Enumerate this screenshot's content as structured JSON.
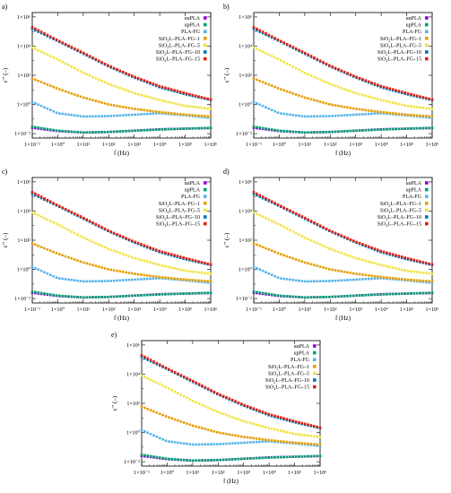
{
  "legend_order": [
    "uuPLA",
    "upPLA",
    "PLA-FG",
    "SiO2L-PLA-FG-1",
    "SiO2L-PLA-FG-5",
    "SiO2L-PLA-FG-10",
    "SiO2L-PLA-FG-15"
  ],
  "series_styles": {
    "uuPLA": {
      "color": "#9400d3",
      "legend": [
        "uuPLA"
      ]
    },
    "upPLA": {
      "color": "#009e73",
      "legend": [
        "upPLA"
      ]
    },
    "PLA-FG": {
      "color": "#56b4e9",
      "legend": [
        "PLA-FG"
      ]
    },
    "SiO2L-PLA-FG-1": {
      "color": "#e69f00",
      "legend": [
        "SiO",
        "2",
        "L–PLA–FG–1"
      ]
    },
    "SiO2L-PLA-FG-5": {
      "color": "#f0e442",
      "legend": [
        "SiO",
        "2",
        "L–PLA–FG–5"
      ]
    },
    "SiO2L-PLA-FG-10": {
      "color": "#0072b2",
      "legend": [
        "SiO",
        "2",
        "L–PLA–FG–10"
      ]
    },
    "SiO2L-PLA-FG-15": {
      "color": "#e51e10",
      "legend": [
        "SiO",
        "2",
        "L–PLA–FG–15"
      ]
    }
  },
  "chart_data": [
    {
      "type": "scatter",
      "panel_label": "a)",
      "xlabel": "f (Hz)",
      "ylabel": "ε’’ (–)",
      "xscale": "log",
      "yscale": "log",
      "xlim": [
        0.1,
        1000000
      ],
      "ylim": [
        0.005,
        2000000
      ],
      "x_ticks": [
        "1×10⁻¹",
        "1×10⁰",
        "1×10¹",
        "1×10²",
        "1×10³",
        "1×10⁴",
        "1×10⁵",
        "1×10⁶"
      ],
      "y_ticks": [
        "1×10⁻²",
        "1×10⁰",
        "1×10²",
        "1×10⁴",
        "1×10⁶"
      ],
      "grid": false,
      "legend": "top-right",
      "series": [
        {
          "name": "uuPLA",
          "x": [
            0.1,
            1,
            10,
            100,
            1000,
            10000,
            100000,
            1000000
          ],
          "y": [
            0.025,
            0.015,
            0.012,
            0.013,
            0.016,
            0.02,
            0.022,
            0.024
          ]
        },
        {
          "name": "upPLA",
          "x": [
            0.1,
            1,
            10,
            100,
            1000,
            10000,
            100000,
            1000000
          ],
          "y": [
            0.03,
            0.016,
            0.012,
            0.013,
            0.016,
            0.019,
            0.022,
            0.025
          ]
        },
        {
          "name": "PLA-FG",
          "x": [
            0.1,
            1,
            10,
            100,
            1000,
            10000,
            100000,
            1000000
          ],
          "y": [
            1.5,
            0.25,
            0.15,
            0.16,
            0.2,
            0.25,
            0.18,
            0.12
          ]
        },
        {
          "name": "SiO2L-PLA-FG-1",
          "x": [
            0.1,
            1,
            10,
            100,
            1000,
            10000,
            100000,
            1000000
          ],
          "y": [
            60,
            12,
            3,
            1,
            0.5,
            0.3,
            0.2,
            0.15
          ]
        },
        {
          "name": "SiO2L-PLA-FG-5",
          "x": [
            0.1,
            1,
            10,
            100,
            1000,
            10000,
            100000,
            1000000
          ],
          "y": [
            8000,
            1200,
            150,
            25,
            6,
            2,
            0.8,
            0.5
          ]
        },
        {
          "name": "SiO2L-PLA-FG-10",
          "x": [
            0.1,
            1,
            10,
            100,
            1000,
            10000,
            100000,
            1000000
          ],
          "y": [
            150000,
            22000,
            3000,
            400,
            70,
            15,
            5,
            2
          ]
        },
        {
          "name": "SiO2L-PLA-FG-15",
          "x": [
            0.1,
            1,
            10,
            100,
            1000,
            10000,
            100000,
            1000000
          ],
          "y": [
            200000,
            25000,
            3500,
            450,
            80,
            18,
            6,
            2.2
          ]
        }
      ]
    },
    {
      "type": "scatter",
      "panel_label": "b)",
      "xlabel": "f (Hz)",
      "ylabel": "ε’’ (–)",
      "xscale": "log",
      "yscale": "log",
      "xlim": [
        0.1,
        1000000
      ],
      "ylim": [
        0.005,
        2000000
      ],
      "x_ticks": [
        "1×10⁻¹",
        "1×10⁰",
        "1×10¹",
        "1×10²",
        "1×10³",
        "1×10⁴",
        "1×10⁵",
        "1×10⁶"
      ],
      "y_ticks": [
        "1×10⁻²",
        "1×10⁰",
        "1×10²",
        "1×10⁴",
        "1×10⁶"
      ],
      "grid": false,
      "legend": "top-right",
      "series": [
        {
          "name": "uuPLA",
          "x": [
            0.1,
            1,
            10,
            100,
            1000,
            10000,
            100000,
            1000000
          ],
          "y": [
            0.025,
            0.015,
            0.012,
            0.013,
            0.016,
            0.02,
            0.022,
            0.024
          ]
        },
        {
          "name": "upPLA",
          "x": [
            0.1,
            1,
            10,
            100,
            1000,
            10000,
            100000,
            1000000
          ],
          "y": [
            0.03,
            0.016,
            0.012,
            0.013,
            0.016,
            0.019,
            0.022,
            0.025
          ]
        },
        {
          "name": "PLA-FG",
          "x": [
            0.1,
            1,
            10,
            100,
            1000,
            10000,
            100000,
            1000000
          ],
          "y": [
            1.5,
            0.25,
            0.15,
            0.16,
            0.2,
            0.25,
            0.18,
            0.12
          ]
        },
        {
          "name": "SiO2L-PLA-FG-1",
          "x": [
            0.1,
            1,
            10,
            100,
            1000,
            10000,
            100000,
            1000000
          ],
          "y": [
            60,
            12,
            3,
            1,
            0.5,
            0.3,
            0.2,
            0.15
          ]
        },
        {
          "name": "SiO2L-PLA-FG-5",
          "x": [
            0.1,
            1,
            10,
            100,
            1000,
            10000,
            100000,
            1000000
          ],
          "y": [
            8000,
            1200,
            150,
            25,
            6,
            2,
            0.8,
            0.5
          ]
        },
        {
          "name": "SiO2L-PLA-FG-10",
          "x": [
            0.1,
            1,
            10,
            100,
            1000,
            10000,
            100000,
            1000000
          ],
          "y": [
            150000,
            22000,
            3000,
            400,
            70,
            15,
            5,
            2
          ]
        },
        {
          "name": "SiO2L-PLA-FG-15",
          "x": [
            0.1,
            1,
            10,
            100,
            1000,
            10000,
            100000,
            1000000
          ],
          "y": [
            200000,
            25000,
            3500,
            450,
            80,
            18,
            6,
            2.2
          ]
        }
      ]
    },
    {
      "type": "scatter",
      "panel_label": "c)",
      "xlabel": "f (Hz)",
      "ylabel": "ε’’ (–)",
      "xscale": "log",
      "yscale": "log",
      "xlim": [
        0.1,
        1000000
      ],
      "ylim": [
        0.005,
        2000000
      ],
      "x_ticks": [
        "1×10⁻¹",
        "1×10⁰",
        "1×10¹",
        "1×10²",
        "1×10³",
        "1×10⁴",
        "1×10⁵",
        "1×10⁶"
      ],
      "y_ticks": [
        "1×10⁻²",
        "1×10⁰",
        "1×10²",
        "1×10⁴",
        "1×10⁶"
      ],
      "grid": false,
      "legend": "top-right",
      "series": [
        {
          "name": "uuPLA",
          "x": [
            0.1,
            1,
            10,
            100,
            1000,
            10000,
            100000,
            1000000
          ],
          "y": [
            0.025,
            0.015,
            0.012,
            0.013,
            0.016,
            0.02,
            0.022,
            0.024
          ]
        },
        {
          "name": "upPLA",
          "x": [
            0.1,
            1,
            10,
            100,
            1000,
            10000,
            100000,
            1000000
          ],
          "y": [
            0.03,
            0.016,
            0.012,
            0.013,
            0.016,
            0.019,
            0.022,
            0.025
          ]
        },
        {
          "name": "PLA-FG",
          "x": [
            0.1,
            1,
            10,
            100,
            1000,
            10000,
            100000,
            1000000
          ],
          "y": [
            1.5,
            0.25,
            0.15,
            0.16,
            0.2,
            0.25,
            0.18,
            0.12
          ]
        },
        {
          "name": "SiO2L-PLA-FG-1",
          "x": [
            0.1,
            1,
            10,
            100,
            1000,
            10000,
            100000,
            1000000
          ],
          "y": [
            60,
            12,
            3,
            1,
            0.5,
            0.3,
            0.2,
            0.15
          ]
        },
        {
          "name": "SiO2L-PLA-FG-5",
          "x": [
            0.1,
            1,
            10,
            100,
            1000,
            10000,
            100000,
            1000000
          ],
          "y": [
            8000,
            1200,
            150,
            25,
            6,
            2,
            0.8,
            0.5
          ]
        },
        {
          "name": "SiO2L-PLA-FG-10",
          "x": [
            0.1,
            1,
            10,
            100,
            1000,
            10000,
            100000,
            1000000
          ],
          "y": [
            150000,
            22000,
            3000,
            400,
            70,
            15,
            5,
            2
          ]
        },
        {
          "name": "SiO2L-PLA-FG-15",
          "x": [
            0.1,
            1,
            10,
            100,
            1000,
            10000,
            100000,
            1000000
          ],
          "y": [
            200000,
            25000,
            3500,
            450,
            80,
            18,
            6,
            2.2
          ]
        }
      ]
    },
    {
      "type": "scatter",
      "panel_label": "d)",
      "xlabel": "f (Hz)",
      "ylabel": "ε’’ (–)",
      "xscale": "log",
      "yscale": "log",
      "xlim": [
        0.1,
        1000000
      ],
      "ylim": [
        0.005,
        2000000
      ],
      "x_ticks": [
        "1×10⁻¹",
        "1×10⁰",
        "1×10¹",
        "1×10²",
        "1×10³",
        "1×10⁴",
        "1×10⁵",
        "1×10⁶"
      ],
      "y_ticks": [
        "1×10⁻²",
        "1×10⁰",
        "1×10²",
        "1×10⁴",
        "1×10⁶"
      ],
      "grid": false,
      "legend": "top-right",
      "series": [
        {
          "name": "uuPLA",
          "x": [
            0.1,
            1,
            10,
            100,
            1000,
            10000,
            100000,
            1000000
          ],
          "y": [
            0.025,
            0.015,
            0.012,
            0.013,
            0.016,
            0.02,
            0.022,
            0.024
          ]
        },
        {
          "name": "upPLA",
          "x": [
            0.1,
            1,
            10,
            100,
            1000,
            10000,
            100000,
            1000000
          ],
          "y": [
            0.03,
            0.016,
            0.012,
            0.013,
            0.016,
            0.019,
            0.022,
            0.025
          ]
        },
        {
          "name": "PLA-FG",
          "x": [
            0.1,
            1,
            10,
            100,
            1000,
            10000,
            100000,
            1000000
          ],
          "y": [
            1.5,
            0.25,
            0.15,
            0.16,
            0.2,
            0.25,
            0.18,
            0.12
          ]
        },
        {
          "name": "SiO2L-PLA-FG-1",
          "x": [
            0.1,
            1,
            10,
            100,
            1000,
            10000,
            100000,
            1000000
          ],
          "y": [
            60,
            12,
            3,
            1,
            0.5,
            0.3,
            0.2,
            0.15
          ]
        },
        {
          "name": "SiO2L-PLA-FG-5",
          "x": [
            0.1,
            1,
            10,
            100,
            1000,
            10000,
            100000,
            1000000
          ],
          "y": [
            8000,
            1200,
            150,
            25,
            6,
            2,
            0.8,
            0.5
          ]
        },
        {
          "name": "SiO2L-PLA-FG-10",
          "x": [
            0.1,
            1,
            10,
            100,
            1000,
            10000,
            100000,
            1000000
          ],
          "y": [
            150000,
            22000,
            3000,
            400,
            70,
            15,
            5,
            2
          ]
        },
        {
          "name": "SiO2L-PLA-FG-15",
          "x": [
            0.1,
            1,
            10,
            100,
            1000,
            10000,
            100000,
            1000000
          ],
          "y": [
            200000,
            25000,
            3500,
            450,
            80,
            18,
            6,
            2.2
          ]
        }
      ]
    },
    {
      "type": "scatter",
      "panel_label": "e)",
      "xlabel": "f (Hz)",
      "ylabel": "ε’’ (–)",
      "xscale": "log",
      "yscale": "log",
      "xlim": [
        0.1,
        1000000
      ],
      "ylim": [
        0.005,
        2000000
      ],
      "x_ticks": [
        "1×10⁻¹",
        "1×10⁰",
        "1×10¹",
        "1×10²",
        "1×10³",
        "1×10⁴",
        "1×10⁵",
        "1×10⁶"
      ],
      "y_ticks": [
        "1×10⁻²",
        "1×10⁰",
        "1×10²",
        "1×10⁴",
        "1×10⁶"
      ],
      "grid": false,
      "legend": "top-right",
      "series": [
        {
          "name": "uuPLA",
          "x": [
            0.1,
            1,
            10,
            100,
            1000,
            10000,
            100000,
            1000000
          ],
          "y": [
            0.025,
            0.015,
            0.012,
            0.013,
            0.016,
            0.02,
            0.022,
            0.024
          ]
        },
        {
          "name": "upPLA",
          "x": [
            0.1,
            1,
            10,
            100,
            1000,
            10000,
            100000,
            1000000
          ],
          "y": [
            0.03,
            0.016,
            0.012,
            0.013,
            0.016,
            0.019,
            0.022,
            0.025
          ]
        },
        {
          "name": "PLA-FG",
          "x": [
            0.1,
            1,
            10,
            100,
            1000,
            10000,
            100000,
            1000000
          ],
          "y": [
            1.5,
            0.25,
            0.15,
            0.16,
            0.2,
            0.25,
            0.18,
            0.12
          ]
        },
        {
          "name": "SiO2L-PLA-FG-1",
          "x": [
            0.1,
            1,
            10,
            100,
            1000,
            10000,
            100000,
            1000000
          ],
          "y": [
            60,
            12,
            3,
            1,
            0.5,
            0.3,
            0.2,
            0.15
          ]
        },
        {
          "name": "SiO2L-PLA-FG-5",
          "x": [
            0.1,
            1,
            10,
            100,
            1000,
            10000,
            100000,
            1000000
          ],
          "y": [
            8000,
            1200,
            150,
            25,
            6,
            2,
            0.8,
            0.5
          ]
        },
        {
          "name": "SiO2L-PLA-FG-10",
          "x": [
            0.1,
            1,
            10,
            100,
            1000,
            10000,
            100000,
            1000000
          ],
          "y": [
            150000,
            22000,
            3000,
            400,
            70,
            15,
            5,
            2
          ]
        },
        {
          "name": "SiO2L-PLA-FG-15",
          "x": [
            0.1,
            1,
            10,
            100,
            1000,
            10000,
            100000,
            1000000
          ],
          "y": [
            200000,
            25000,
            3500,
            450,
            80,
            18,
            6,
            2.2
          ]
        }
      ]
    }
  ]
}
